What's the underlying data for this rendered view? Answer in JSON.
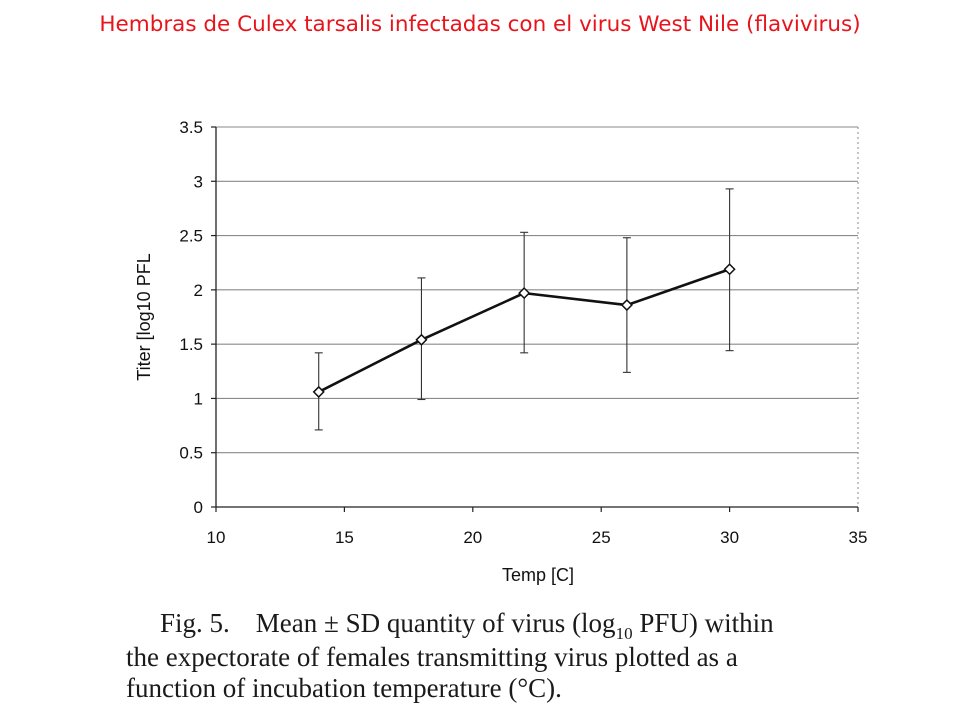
{
  "slide": {
    "title": "Hembras de Culex tarsalis infectadas con el virus West Nile (flavivirus)"
  },
  "caption": {
    "fig_label": "Fig. 5.",
    "line1_a": "Mean ± SD quantity of virus (log",
    "line1_sub": "10",
    "line1_b": " PFU) within",
    "line2": "the expectorate of females transmitting virus plotted as a",
    "line3": "function of incubation temperature (°C)."
  },
  "colors": {
    "title": "#e8141b",
    "line": "#111111",
    "grid": "#8a8a8a"
  },
  "chart_data": {
    "type": "line",
    "title": "",
    "xlabel": "Temp [C]",
    "ylabel": "Titer [log10 PFL",
    "xlim": [
      10,
      35
    ],
    "ylim": [
      0,
      3.5
    ],
    "x_ticks": [
      10,
      15,
      20,
      25,
      30,
      35
    ],
    "y_ticks": [
      0,
      0.5,
      1,
      1.5,
      2,
      2.5,
      3,
      3.5
    ],
    "x_tick_labels": [
      "10",
      "15",
      "20",
      "25",
      "30",
      "35"
    ],
    "y_tick_labels": [
      "0",
      "0.5",
      "1",
      "1.5",
      "2",
      "2.5",
      "3",
      "3.5"
    ],
    "grid": "horizontal",
    "marker": "open-diamond",
    "series": [
      {
        "x": [
          14,
          18,
          22,
          26,
          30
        ],
        "y": [
          1.06,
          1.54,
          1.97,
          1.86,
          2.19
        ],
        "err_low": [
          0.71,
          0.99,
          1.42,
          1.24,
          1.44
        ],
        "err_high": [
          1.42,
          2.11,
          2.53,
          2.48,
          2.93
        ]
      }
    ]
  }
}
